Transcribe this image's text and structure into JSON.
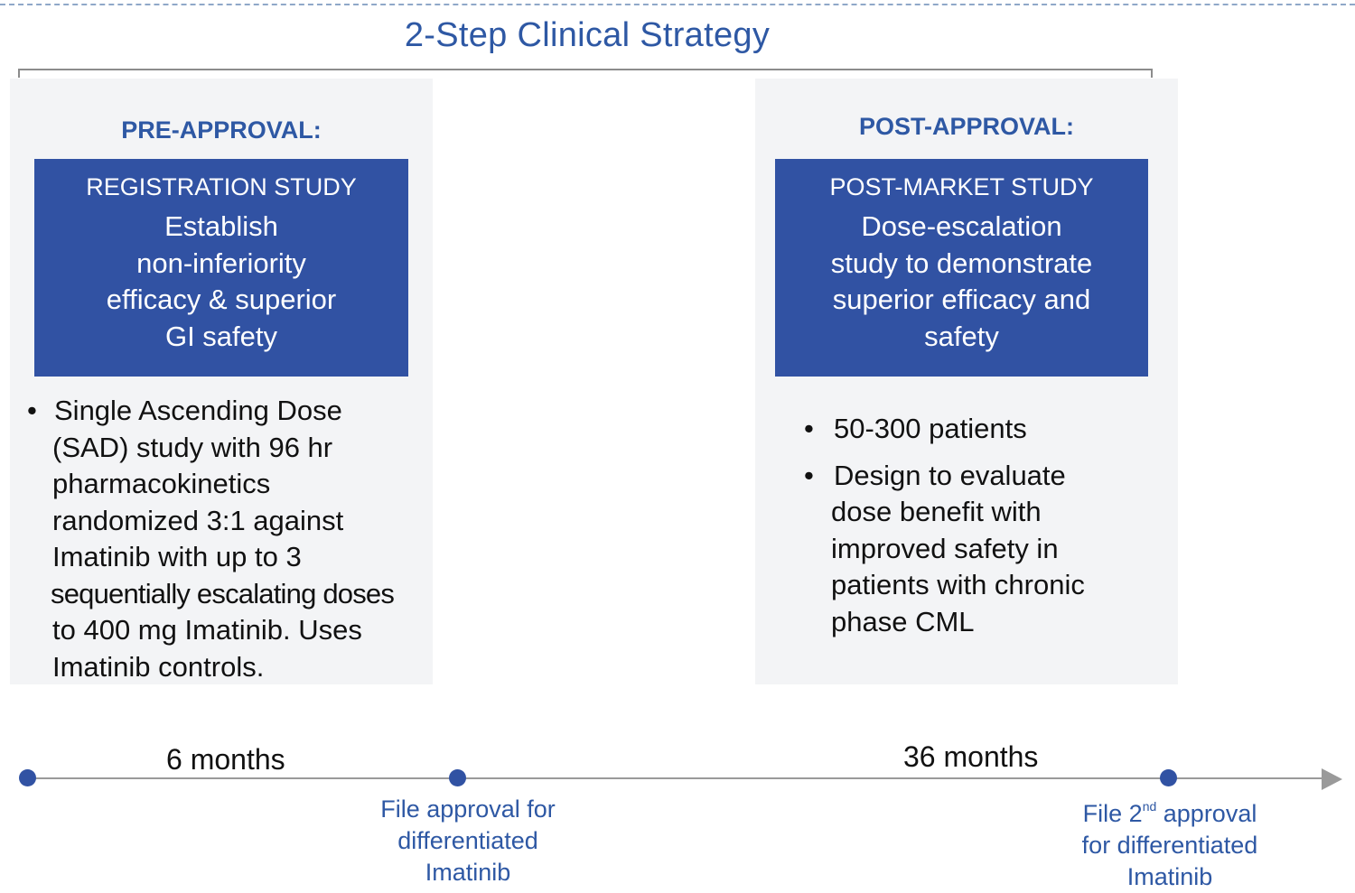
{
  "title": "2-Step Clinical Strategy",
  "pre_approval": {
    "phase_label": "PRE-APPROVAL:",
    "box_heading": "REGISTRATION STUDY",
    "box_lines": [
      "Establish",
      "non-inferiority",
      "efficacy & superior",
      "GI safety"
    ],
    "bullet_lines": [
      "Single Ascending Dose",
      "(SAD) study with 96 hr",
      "pharmacokinetics",
      "randomized 3:1 against",
      "Imatinib with up to 3",
      "sequentially escalating doses",
      "to 400 mg Imatinib. Uses",
      "Imatinib controls."
    ]
  },
  "post_approval": {
    "phase_label": "POST-APPROVAL:",
    "box_heading": "POST-MARKET STUDY",
    "box_lines": [
      "Dose-escalation",
      "study to demonstrate",
      "superior efficacy and",
      "safety"
    ],
    "bullet_1": "50-300 patients",
    "bullet_2_lines": [
      "Design to evaluate",
      "dose benefit with",
      "improved safety in",
      "patients with chronic",
      "phase CML"
    ]
  },
  "timeline": {
    "duration_1": "6 months",
    "duration_2": "36 months",
    "milestone_1_lines": [
      "File approval for",
      "differentiated",
      "Imatinib"
    ],
    "milestone_2": {
      "prefix": "File 2",
      "superscript": "nd",
      "suffix": " approval",
      "line_2": "for differentiated",
      "line_3": "Imatinib"
    }
  },
  "colors": {
    "accent_blue": "#3152a3",
    "title_blue": "#2e58a4",
    "panel_gray": "#f3f4f6",
    "timeline_gray": "#9a9a9a"
  },
  "icons": {
    "bullet": "bullet-dot-icon",
    "timeline_marker": "circle-marker-icon",
    "timeline_end": "arrow-right-icon"
  }
}
